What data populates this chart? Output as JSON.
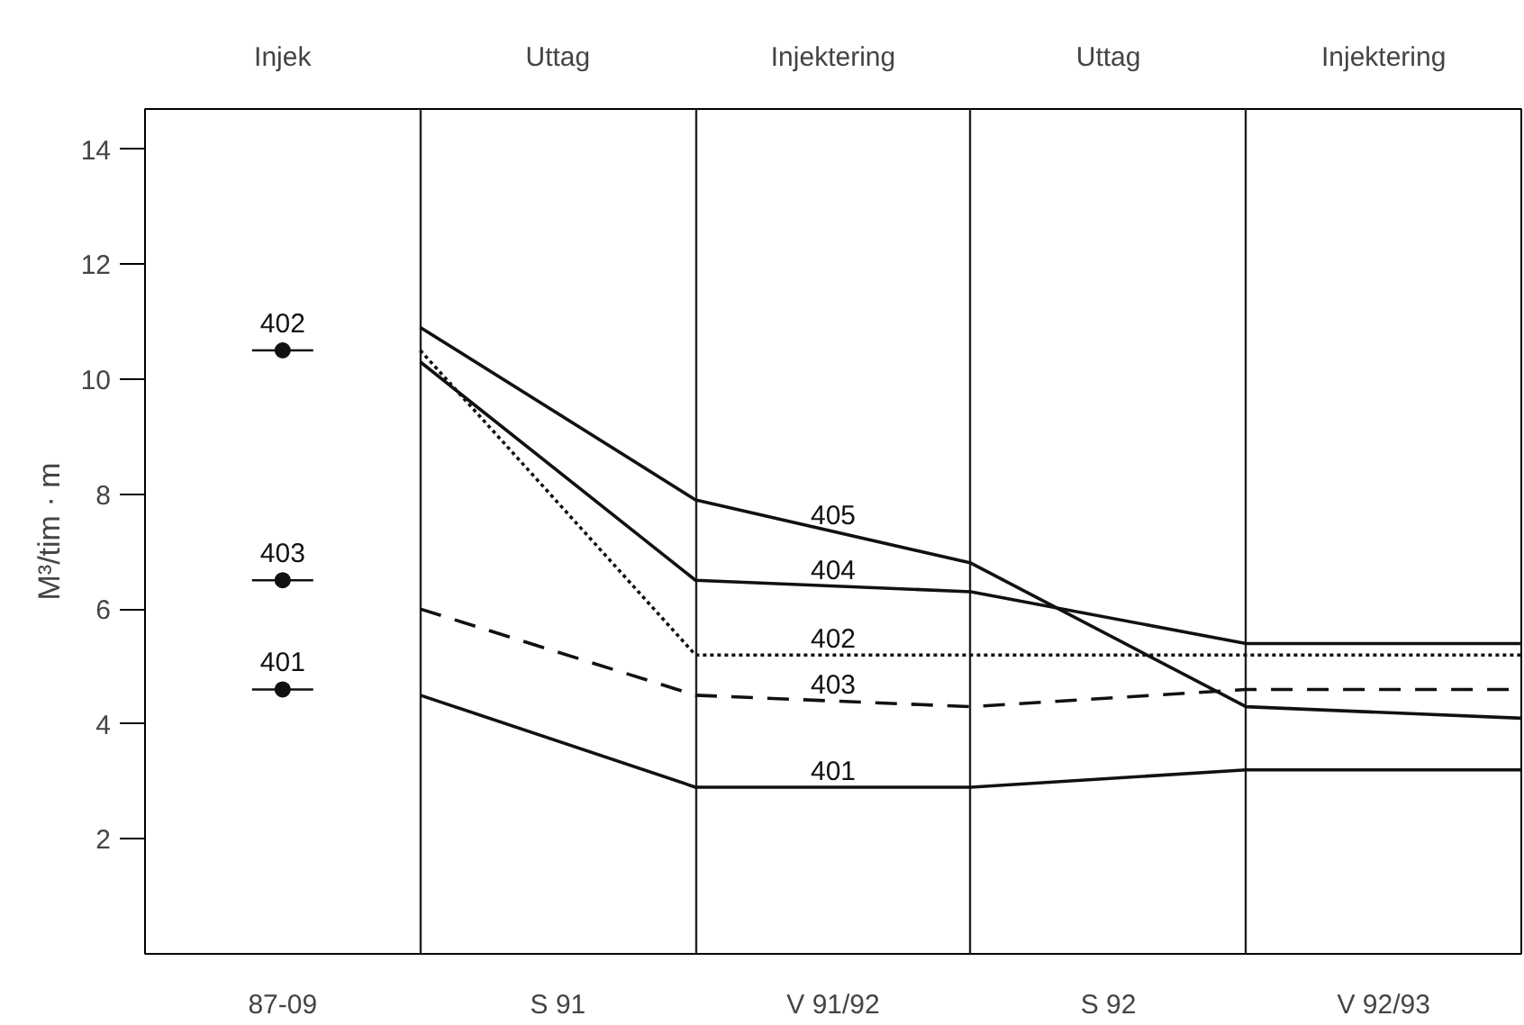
{
  "chart_data": {
    "type": "line",
    "ylabel": "M³/tim · m",
    "categories": [
      null,
      "87-09",
      null,
      "S 91",
      null,
      "V 91/92",
      null,
      "S 92",
      null,
      "V 92/93",
      null
    ],
    "annotations": [
      "Injek",
      "Uttag",
      "Injektering",
      "Uttag",
      "Injektering"
    ],
    "ylim": [
      0,
      14.7
    ],
    "yticks": [
      2,
      4,
      6,
      8,
      10,
      12,
      14
    ],
    "grid": "x",
    "legend": false,
    "series": [
      {
        "name": "405",
        "color": "#111111",
        "line_style": "solid",
        "values": [
          null,
          null,
          10.9,
          null,
          7.9,
          null,
          6.8,
          null,
          4.3,
          null,
          4.1
        ]
      },
      {
        "name": "404",
        "color": "#111111",
        "line_style": "solid",
        "values": [
          null,
          null,
          10.3,
          null,
          6.5,
          null,
          6.3,
          null,
          5.4,
          null,
          5.4
        ]
      },
      {
        "name": "402",
        "color": "#111111",
        "line_style": "dotted",
        "values": [
          null,
          null,
          10.5,
          null,
          5.2,
          null,
          5.2,
          null,
          5.2,
          null,
          5.2
        ]
      },
      {
        "name": "403",
        "color": "#111111",
        "line_style": "dashed",
        "values": [
          null,
          null,
          6.0,
          null,
          4.5,
          null,
          4.3,
          null,
          4.6,
          null,
          4.6
        ]
      },
      {
        "name": "401",
        "color": "#111111",
        "line_style": "solid",
        "values": [
          null,
          null,
          4.5,
          null,
          2.9,
          null,
          2.9,
          null,
          3.2,
          null,
          3.2
        ]
      },
      {
        "name": "402",
        "type": "scatter",
        "color": "#111111",
        "marker": "circle",
        "values": [
          null,
          10.5,
          null,
          null,
          null,
          null,
          null,
          null,
          null,
          null,
          null
        ]
      },
      {
        "name": "403",
        "type": "scatter",
        "color": "#111111",
        "marker": "circle",
        "values": [
          null,
          6.5,
          null,
          null,
          null,
          null,
          null,
          null,
          null,
          null,
          null
        ]
      },
      {
        "name": "401",
        "type": "scatter",
        "color": "#111111",
        "marker": "circle",
        "values": [
          null,
          4.6,
          null,
          null,
          null,
          null,
          null,
          null,
          null,
          null,
          null
        ]
      }
    ]
  }
}
